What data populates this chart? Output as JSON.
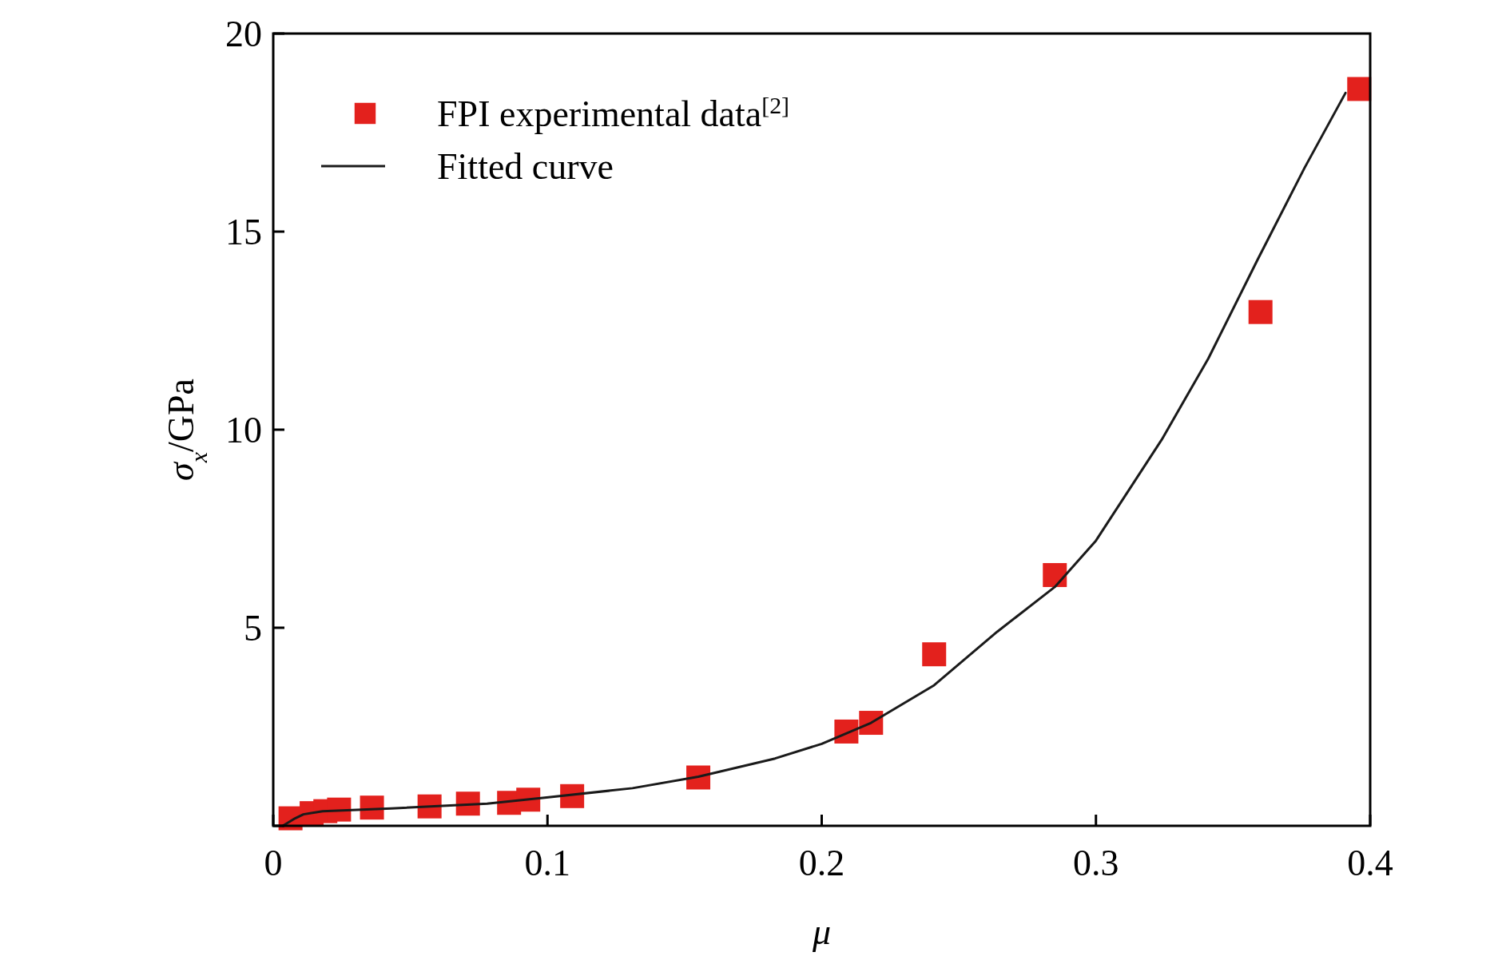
{
  "chart_data": {
    "type": "scatter",
    "xlabel": "μ",
    "ylabel": "σ$_{x}$/GPa",
    "xlim": [
      0,
      0.4
    ],
    "ylim": [
      0,
      20
    ],
    "xticks": [
      0,
      0.1,
      0.2,
      0.3,
      0.4
    ],
    "yticks": [
      {
        "value": 0,
        "label": null
      },
      5,
      10,
      15,
      20
    ],
    "grid": false,
    "legend": "top left",
    "series": [
      {
        "name": "FPI experimental data$^{[2]}$",
        "marker": "square",
        "color": "#e3211d",
        "x": [
          0.0063,
          0.014,
          0.019,
          0.024,
          0.036,
          0.057,
          0.071,
          0.086,
          0.093,
          0.109,
          0.155,
          0.209,
          0.218,
          0.241,
          0.285,
          0.36,
          0.396
        ],
        "values": [
          0.19,
          0.32,
          0.37,
          0.41,
          0.46,
          0.49,
          0.56,
          0.58,
          0.66,
          0.75,
          1.22,
          2.38,
          2.6,
          4.33,
          6.33,
          12.97,
          18.6
        ]
      },
      {
        "name": "Fitted curve",
        "type": "line",
        "marker": "none",
        "line_style": "solid",
        "color": "#1a1a1a",
        "x": [
          0.0035,
          0.008,
          0.011,
          0.018,
          0.043,
          0.078,
          0.099,
          0.131,
          0.155,
          0.183,
          0.2,
          0.218,
          0.241,
          0.264,
          0.285,
          0.3,
          0.324,
          0.341,
          0.359,
          0.376,
          0.391
        ],
        "values": [
          0,
          0.19,
          0.29,
          0.37,
          0.44,
          0.56,
          0.71,
          0.95,
          1.24,
          1.7,
          2.07,
          2.6,
          3.55,
          4.9,
          6.03,
          7.2,
          9.75,
          11.8,
          14.3,
          16.6,
          18.5
        ]
      }
    ]
  }
}
